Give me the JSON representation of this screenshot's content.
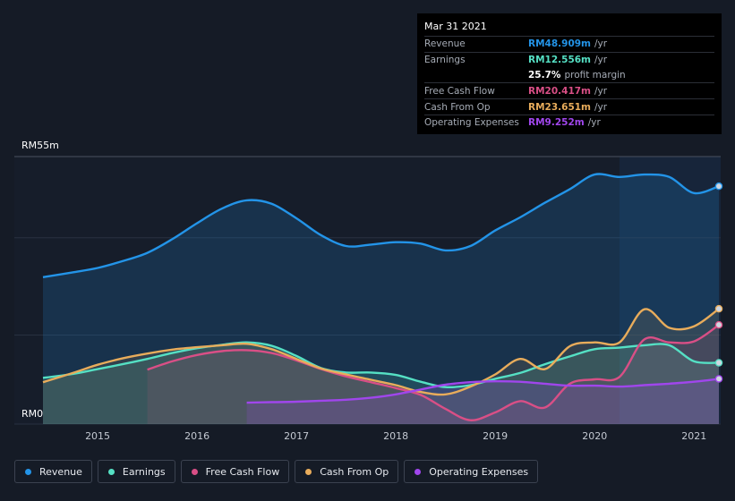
{
  "tooltip": {
    "date": "Mar 31 2021",
    "rows": [
      {
        "label": "Revenue",
        "value": "RM48.909m",
        "unit": "/yr",
        "color": "#2394e8"
      },
      {
        "label": "Earnings",
        "value": "RM12.556m",
        "unit": "/yr",
        "color": "#55e0c4"
      },
      {
        "label": "",
        "value": "25.7%",
        "unit": "profit margin",
        "color": "#ffffff"
      },
      {
        "label": "Free Cash Flow",
        "value": "RM20.417m",
        "unit": "/yr",
        "color": "#d94f86"
      },
      {
        "label": "Cash From Op",
        "value": "RM23.651m",
        "unit": "/yr",
        "color": "#e8ac5b"
      },
      {
        "label": "Operating Expenses",
        "value": "RM9.252m",
        "unit": "/yr",
        "color": "#a046ec"
      }
    ]
  },
  "legend": [
    {
      "label": "Revenue",
      "color": "#2394e8"
    },
    {
      "label": "Earnings",
      "color": "#55e0c4"
    },
    {
      "label": "Free Cash Flow",
      "color": "#d94f86"
    },
    {
      "label": "Cash From Op",
      "color": "#e8ac5b"
    },
    {
      "label": "Operating Expenses",
      "color": "#a046ec"
    }
  ],
  "chart_data": {
    "type": "area",
    "ylabel_top": "RM55m",
    "ylabel_bottom": "RM0",
    "ylim": [
      0,
      55
    ],
    "xlim": [
      2014.45,
      2021.25
    ],
    "xticks": [
      2015,
      2016,
      2017,
      2018,
      2019,
      2020,
      2021
    ],
    "highlight_start": 2020.25,
    "series": [
      {
        "name": "Revenue",
        "color": "#2394e8",
        "points": [
          [
            2014.45,
            30.2
          ],
          [
            2014.75,
            31.2
          ],
          [
            2015.0,
            32.1
          ],
          [
            2015.25,
            33.5
          ],
          [
            2015.5,
            35.2
          ],
          [
            2015.75,
            38.0
          ],
          [
            2016.0,
            41.3
          ],
          [
            2016.25,
            44.3
          ],
          [
            2016.5,
            46.0
          ],
          [
            2016.75,
            45.3
          ],
          [
            2017.0,
            42.3
          ],
          [
            2017.25,
            38.8
          ],
          [
            2017.5,
            36.6
          ],
          [
            2017.75,
            36.9
          ],
          [
            2018.0,
            37.4
          ],
          [
            2018.25,
            37.1
          ],
          [
            2018.5,
            35.7
          ],
          [
            2018.75,
            36.6
          ],
          [
            2019.0,
            39.8
          ],
          [
            2019.25,
            42.5
          ],
          [
            2019.5,
            45.5
          ],
          [
            2019.75,
            48.3
          ],
          [
            2020.0,
            51.3
          ],
          [
            2020.25,
            50.8
          ],
          [
            2020.5,
            51.3
          ],
          [
            2020.75,
            50.8
          ],
          [
            2021.0,
            47.5
          ],
          [
            2021.25,
            48.9
          ]
        ]
      },
      {
        "name": "Earnings",
        "color": "#55e0c4",
        "points": [
          [
            2014.45,
            9.5
          ],
          [
            2014.75,
            10.3
          ],
          [
            2015.0,
            11.3
          ],
          [
            2015.25,
            12.3
          ],
          [
            2015.5,
            13.4
          ],
          [
            2015.75,
            14.6
          ],
          [
            2016.0,
            15.6
          ],
          [
            2016.25,
            16.3
          ],
          [
            2016.5,
            16.8
          ],
          [
            2016.75,
            16.1
          ],
          [
            2017.0,
            14.0
          ],
          [
            2017.25,
            11.5
          ],
          [
            2017.5,
            10.6
          ],
          [
            2017.75,
            10.6
          ],
          [
            2018.0,
            10.1
          ],
          [
            2018.25,
            8.7
          ],
          [
            2018.5,
            7.6
          ],
          [
            2018.75,
            8.0
          ],
          [
            2019.0,
            9.3
          ],
          [
            2019.25,
            10.5
          ],
          [
            2019.5,
            12.3
          ],
          [
            2019.75,
            13.9
          ],
          [
            2020.0,
            15.4
          ],
          [
            2020.25,
            15.7
          ],
          [
            2020.5,
            16.2
          ],
          [
            2020.75,
            16.2
          ],
          [
            2021.0,
            12.9
          ],
          [
            2021.25,
            12.6
          ]
        ]
      },
      {
        "name": "Free Cash Flow",
        "color": "#d94f86",
        "points": [
          [
            2015.5,
            11.2
          ],
          [
            2015.75,
            12.9
          ],
          [
            2016.0,
            14.2
          ],
          [
            2016.25,
            15.0
          ],
          [
            2016.5,
            15.2
          ],
          [
            2016.75,
            14.6
          ],
          [
            2017.0,
            13.1
          ],
          [
            2017.25,
            11.3
          ],
          [
            2017.5,
            9.8
          ],
          [
            2017.75,
            8.6
          ],
          [
            2018.0,
            7.4
          ],
          [
            2018.25,
            6.0
          ],
          [
            2018.5,
            3.1
          ],
          [
            2018.75,
            0.8
          ],
          [
            2019.0,
            2.4
          ],
          [
            2019.25,
            4.7
          ],
          [
            2019.5,
            3.4
          ],
          [
            2019.75,
            8.3
          ],
          [
            2020.0,
            9.2
          ],
          [
            2020.25,
            9.7
          ],
          [
            2020.5,
            17.4
          ],
          [
            2020.75,
            16.8
          ],
          [
            2021.0,
            17.0
          ],
          [
            2021.25,
            20.4
          ]
        ]
      },
      {
        "name": "Cash From Op",
        "color": "#e8ac5b",
        "points": [
          [
            2014.45,
            8.6
          ],
          [
            2014.75,
            10.5
          ],
          [
            2015.0,
            12.2
          ],
          [
            2015.25,
            13.5
          ],
          [
            2015.5,
            14.5
          ],
          [
            2015.75,
            15.3
          ],
          [
            2016.0,
            15.8
          ],
          [
            2016.25,
            16.2
          ],
          [
            2016.5,
            16.5
          ],
          [
            2016.75,
            15.4
          ],
          [
            2017.0,
            13.4
          ],
          [
            2017.25,
            11.4
          ],
          [
            2017.5,
            10.2
          ],
          [
            2017.75,
            9.1
          ],
          [
            2018.0,
            8.0
          ],
          [
            2018.25,
            6.6
          ],
          [
            2018.5,
            6.1
          ],
          [
            2018.75,
            7.7
          ],
          [
            2019.0,
            10.2
          ],
          [
            2019.25,
            13.4
          ],
          [
            2019.5,
            11.3
          ],
          [
            2019.75,
            16.0
          ],
          [
            2020.0,
            16.8
          ],
          [
            2020.25,
            16.8
          ],
          [
            2020.5,
            23.6
          ],
          [
            2020.75,
            19.8
          ],
          [
            2021.0,
            20.1
          ],
          [
            2021.25,
            23.7
          ]
        ]
      },
      {
        "name": "Operating Expenses",
        "color": "#a046ec",
        "points": [
          [
            2016.5,
            4.4
          ],
          [
            2016.75,
            4.5
          ],
          [
            2017.0,
            4.6
          ],
          [
            2017.25,
            4.8
          ],
          [
            2017.5,
            5.0
          ],
          [
            2017.75,
            5.4
          ],
          [
            2018.0,
            6.1
          ],
          [
            2018.25,
            7.1
          ],
          [
            2018.5,
            8.1
          ],
          [
            2018.75,
            8.6
          ],
          [
            2019.0,
            8.8
          ],
          [
            2019.25,
            8.7
          ],
          [
            2019.5,
            8.3
          ],
          [
            2019.75,
            7.9
          ],
          [
            2020.0,
            7.9
          ],
          [
            2020.25,
            7.7
          ],
          [
            2020.5,
            8.0
          ],
          [
            2020.75,
            8.3
          ],
          [
            2021.0,
            8.7
          ],
          [
            2021.25,
            9.3
          ]
        ]
      }
    ]
  }
}
